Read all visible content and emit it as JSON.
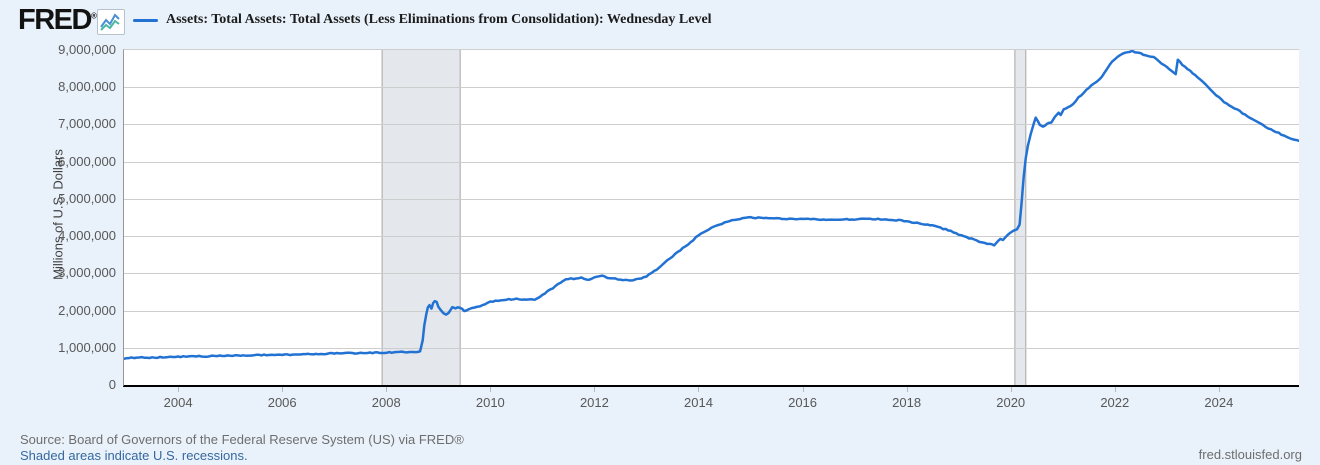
{
  "header": {
    "logo": "FRED",
    "logo_mark": "®",
    "legend_label": "Assets: Total Assets: Total Assets (Less Eliminations from Consolidation): Wednesday Level"
  },
  "footer": {
    "source": "Source: Board of Governors of the Federal Reserve System (US) via FRED®",
    "recession_note": "Shaded areas indicate U.S. recessions.",
    "site": "fred.stlouisfed.org"
  },
  "chart_data": {
    "type": "line",
    "title": "Assets: Total Assets: Total Assets (Less Eliminations from Consolidation): Wednesday Level",
    "ylabel": "Millions of U.S. Dollars",
    "xlabel": "",
    "grid": true,
    "legend_position": "top",
    "x_range": [
      2002.96,
      2025.54
    ],
    "ylim": [
      0,
      9000000
    ],
    "y_ticks": [
      0,
      1000000,
      2000000,
      3000000,
      4000000,
      5000000,
      6000000,
      7000000,
      8000000,
      9000000
    ],
    "x_ticks": [
      2004,
      2006,
      2008,
      2010,
      2012,
      2014,
      2016,
      2018,
      2020,
      2022,
      2024
    ],
    "line_color": "#2272d3",
    "grid_color": "#cdcdcd",
    "recession_fill": "#e4e8ec",
    "recession_edge": "#a6a6a6",
    "recession_bands": [
      [
        2007.92,
        2009.42
      ],
      [
        2020.08,
        2020.29
      ]
    ],
    "series": [
      {
        "name": "Assets: Total Assets: Total Assets (Less Eliminations from Consolidation): Wednesday Level",
        "units": "Millions of U.S. Dollars",
        "points": [
          [
            2002.96,
            720000
          ],
          [
            2003.25,
            735000
          ],
          [
            2003.5,
            740000
          ],
          [
            2003.75,
            750000
          ],
          [
            2004.0,
            758000
          ],
          [
            2004.5,
            770000
          ],
          [
            2005.0,
            785000
          ],
          [
            2005.5,
            800000
          ],
          [
            2006.0,
            815000
          ],
          [
            2006.5,
            825000
          ],
          [
            2007.0,
            850000
          ],
          [
            2007.5,
            855000
          ],
          [
            2007.92,
            870000
          ],
          [
            2008.2,
            880000
          ],
          [
            2008.5,
            890000
          ],
          [
            2008.65,
            905000
          ],
          [
            2008.7,
            1200000
          ],
          [
            2008.73,
            1600000
          ],
          [
            2008.77,
            1900000
          ],
          [
            2008.8,
            2080000
          ],
          [
            2008.83,
            2140000
          ],
          [
            2008.87,
            2050000
          ],
          [
            2008.9,
            2210000
          ],
          [
            2008.93,
            2250000
          ],
          [
            2008.97,
            2240000
          ],
          [
            2009.0,
            2100000
          ],
          [
            2009.05,
            2000000
          ],
          [
            2009.1,
            1920000
          ],
          [
            2009.15,
            1880000
          ],
          [
            2009.2,
            1950000
          ],
          [
            2009.27,
            2080000
          ],
          [
            2009.33,
            2070000
          ],
          [
            2009.42,
            2080000
          ],
          [
            2009.5,
            1990000
          ],
          [
            2009.58,
            2030000
          ],
          [
            2009.7,
            2080000
          ],
          [
            2009.85,
            2140000
          ],
          [
            2010.0,
            2230000
          ],
          [
            2010.15,
            2270000
          ],
          [
            2010.3,
            2300000
          ],
          [
            2010.5,
            2310000
          ],
          [
            2010.7,
            2290000
          ],
          [
            2010.85,
            2300000
          ],
          [
            2011.0,
            2420000
          ],
          [
            2011.15,
            2560000
          ],
          [
            2011.3,
            2700000
          ],
          [
            2011.45,
            2850000
          ],
          [
            2011.6,
            2860000
          ],
          [
            2011.75,
            2880000
          ],
          [
            2011.9,
            2820000
          ],
          [
            2012.0,
            2900000
          ],
          [
            2012.15,
            2930000
          ],
          [
            2012.3,
            2870000
          ],
          [
            2012.5,
            2830000
          ],
          [
            2012.7,
            2810000
          ],
          [
            2012.9,
            2850000
          ],
          [
            2013.0,
            2920000
          ],
          [
            2013.2,
            3100000
          ],
          [
            2013.4,
            3350000
          ],
          [
            2013.6,
            3560000
          ],
          [
            2013.8,
            3780000
          ],
          [
            2014.0,
            4020000
          ],
          [
            2014.2,
            4180000
          ],
          [
            2014.4,
            4320000
          ],
          [
            2014.6,
            4400000
          ],
          [
            2014.8,
            4470000
          ],
          [
            2015.0,
            4500000
          ],
          [
            2015.3,
            4480000
          ],
          [
            2015.6,
            4470000
          ],
          [
            2016.0,
            4460000
          ],
          [
            2016.4,
            4440000
          ],
          [
            2016.8,
            4450000
          ],
          [
            2017.2,
            4460000
          ],
          [
            2017.6,
            4450000
          ],
          [
            2017.9,
            4420000
          ],
          [
            2018.2,
            4350000
          ],
          [
            2018.5,
            4280000
          ],
          [
            2018.8,
            4160000
          ],
          [
            2019.0,
            4050000
          ],
          [
            2019.2,
            3950000
          ],
          [
            2019.4,
            3850000
          ],
          [
            2019.6,
            3780000
          ],
          [
            2019.68,
            3760000
          ],
          [
            2019.75,
            3850000
          ],
          [
            2019.8,
            3920000
          ],
          [
            2019.85,
            3900000
          ],
          [
            2019.95,
            4050000
          ],
          [
            2020.05,
            4150000
          ],
          [
            2020.12,
            4170000
          ],
          [
            2020.17,
            4310000
          ],
          [
            2020.21,
            4900000
          ],
          [
            2020.25,
            5600000
          ],
          [
            2020.29,
            6100000
          ],
          [
            2020.33,
            6430000
          ],
          [
            2020.38,
            6720000
          ],
          [
            2020.44,
            7010000
          ],
          [
            2020.48,
            7170000
          ],
          [
            2020.52,
            7100000
          ],
          [
            2020.56,
            6980000
          ],
          [
            2020.62,
            6950000
          ],
          [
            2020.7,
            7010000
          ],
          [
            2020.78,
            7060000
          ],
          [
            2020.85,
            7200000
          ],
          [
            2020.92,
            7320000
          ],
          [
            2020.96,
            7240000
          ],
          [
            2021.02,
            7410000
          ],
          [
            2021.1,
            7450000
          ],
          [
            2021.2,
            7560000
          ],
          [
            2021.3,
            7720000
          ],
          [
            2021.45,
            7920000
          ],
          [
            2021.6,
            8100000
          ],
          [
            2021.75,
            8280000
          ],
          [
            2021.9,
            8600000
          ],
          [
            2022.0,
            8760000
          ],
          [
            2022.1,
            8870000
          ],
          [
            2022.25,
            8940000
          ],
          [
            2022.33,
            8965000
          ],
          [
            2022.45,
            8930000
          ],
          [
            2022.6,
            8850000
          ],
          [
            2022.75,
            8800000
          ],
          [
            2022.9,
            8630000
          ],
          [
            2023.0,
            8550000
          ],
          [
            2023.1,
            8430000
          ],
          [
            2023.17,
            8350000
          ],
          [
            2023.21,
            8730000
          ],
          [
            2023.3,
            8600000
          ],
          [
            2023.45,
            8440000
          ],
          [
            2023.6,
            8250000
          ],
          [
            2023.75,
            8080000
          ],
          [
            2023.9,
            7850000
          ],
          [
            2024.05,
            7660000
          ],
          [
            2024.2,
            7500000
          ],
          [
            2024.35,
            7400000
          ],
          [
            2024.5,
            7260000
          ],
          [
            2024.65,
            7140000
          ],
          [
            2024.8,
            7020000
          ],
          [
            2024.95,
            6900000
          ],
          [
            2025.1,
            6800000
          ],
          [
            2025.25,
            6700000
          ],
          [
            2025.4,
            6620000
          ],
          [
            2025.54,
            6560000
          ]
        ]
      }
    ]
  }
}
